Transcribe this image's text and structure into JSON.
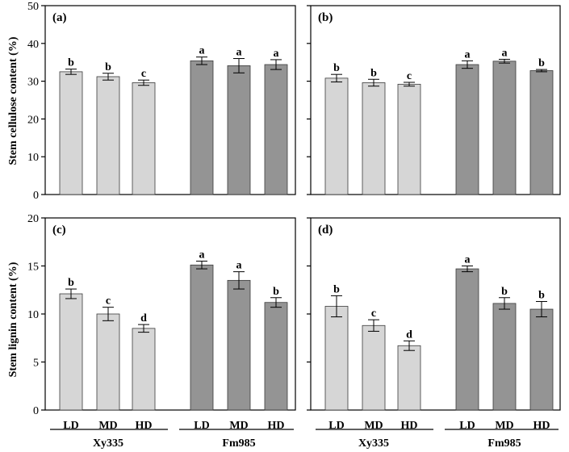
{
  "figure": {
    "ylabel_top": "Stem cellulose content (%)",
    "ylabel_bottom": "Stem lignin content (%)",
    "groups": [
      "Xy335",
      "Fm985"
    ]
  },
  "colors": {
    "light_bar": "#d6d6d6",
    "dark_bar": "#949494",
    "axis": "#000000"
  },
  "chart_data": [
    {
      "type": "bar",
      "panel": "(a)",
      "categories": [
        "LD",
        "MD",
        "HD",
        "LD",
        "MD",
        "HD"
      ],
      "group": [
        "Xy335",
        "Xy335",
        "Xy335",
        "Fm985",
        "Fm985",
        "Fm985"
      ],
      "values": [
        32.5,
        31.2,
        29.6,
        35.4,
        34.1,
        34.4
      ],
      "errors": [
        0.7,
        0.9,
        0.7,
        1.0,
        1.9,
        1.3
      ],
      "letters": [
        "b",
        "b",
        "c",
        "a",
        "a",
        "a"
      ],
      "ylabel": "Stem cellulose content (%)",
      "ylim": [
        0,
        50
      ],
      "yticks": [
        0,
        10,
        20,
        30,
        40,
        50
      ],
      "show_y_ticklabels": true
    },
    {
      "type": "bar",
      "panel": "(b)",
      "categories": [
        "LD",
        "MD",
        "HD",
        "LD",
        "MD",
        "HD"
      ],
      "group": [
        "Xy335",
        "Xy335",
        "Xy335",
        "Fm985",
        "Fm985",
        "Fm985"
      ],
      "values": [
        30.8,
        29.6,
        29.2,
        34.4,
        35.3,
        32.8
      ],
      "errors": [
        1.0,
        0.9,
        0.5,
        1.0,
        0.5,
        0.3
      ],
      "letters": [
        "b",
        "b",
        "c",
        "a",
        "a",
        "b"
      ],
      "ylim": [
        0,
        50
      ],
      "yticks": [
        0,
        10,
        20,
        30,
        40,
        50
      ],
      "show_y_ticklabels": false
    },
    {
      "type": "bar",
      "panel": "(c)",
      "categories": [
        "LD",
        "MD",
        "HD",
        "LD",
        "MD",
        "HD"
      ],
      "group": [
        "Xy335",
        "Xy335",
        "Xy335",
        "Fm985",
        "Fm985",
        "Fm985"
      ],
      "values": [
        12.1,
        10.0,
        8.5,
        15.1,
        13.5,
        11.2
      ],
      "errors": [
        0.5,
        0.7,
        0.4,
        0.4,
        0.9,
        0.5
      ],
      "letters": [
        "b",
        "c",
        "d",
        "a",
        "a",
        "b"
      ],
      "ylabel": "Stem lignin content (%)",
      "ylim": [
        0,
        20
      ],
      "yticks": [
        0,
        5,
        10,
        15,
        20
      ],
      "show_y_ticklabels": true
    },
    {
      "type": "bar",
      "panel": "(d)",
      "categories": [
        "LD",
        "MD",
        "HD",
        "LD",
        "MD",
        "HD"
      ],
      "group": [
        "Xy335",
        "Xy335",
        "Xy335",
        "Fm985",
        "Fm985",
        "Fm985"
      ],
      "values": [
        10.8,
        8.8,
        6.7,
        14.7,
        11.1,
        10.5
      ],
      "errors": [
        1.1,
        0.6,
        0.5,
        0.3,
        0.6,
        0.8
      ],
      "letters": [
        "b",
        "c",
        "d",
        "a",
        "b",
        "b"
      ],
      "ylim": [
        0,
        20
      ],
      "yticks": [
        0,
        5,
        10,
        15,
        20
      ],
      "show_y_ticklabels": false
    }
  ]
}
